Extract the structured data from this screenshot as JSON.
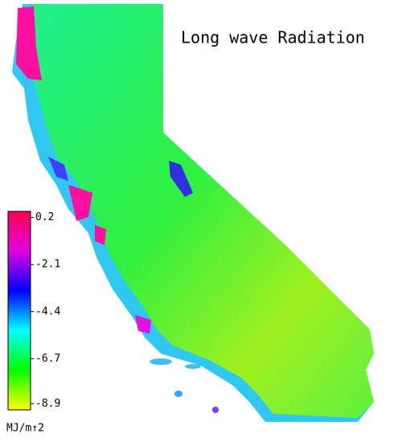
{
  "title": "Long wave Radiation",
  "legend": {
    "ticks": [
      0.2,
      -2.1,
      -4.4,
      -6.7,
      -8.9
    ],
    "range": [
      -9.2,
      0.5
    ],
    "colors": [
      "#ffff00",
      "#00ff00",
      "#00ffff",
      "#0000ff",
      "#e000e0",
      "#ff0050"
    ],
    "unit": "MJ/m↑2"
  }
}
